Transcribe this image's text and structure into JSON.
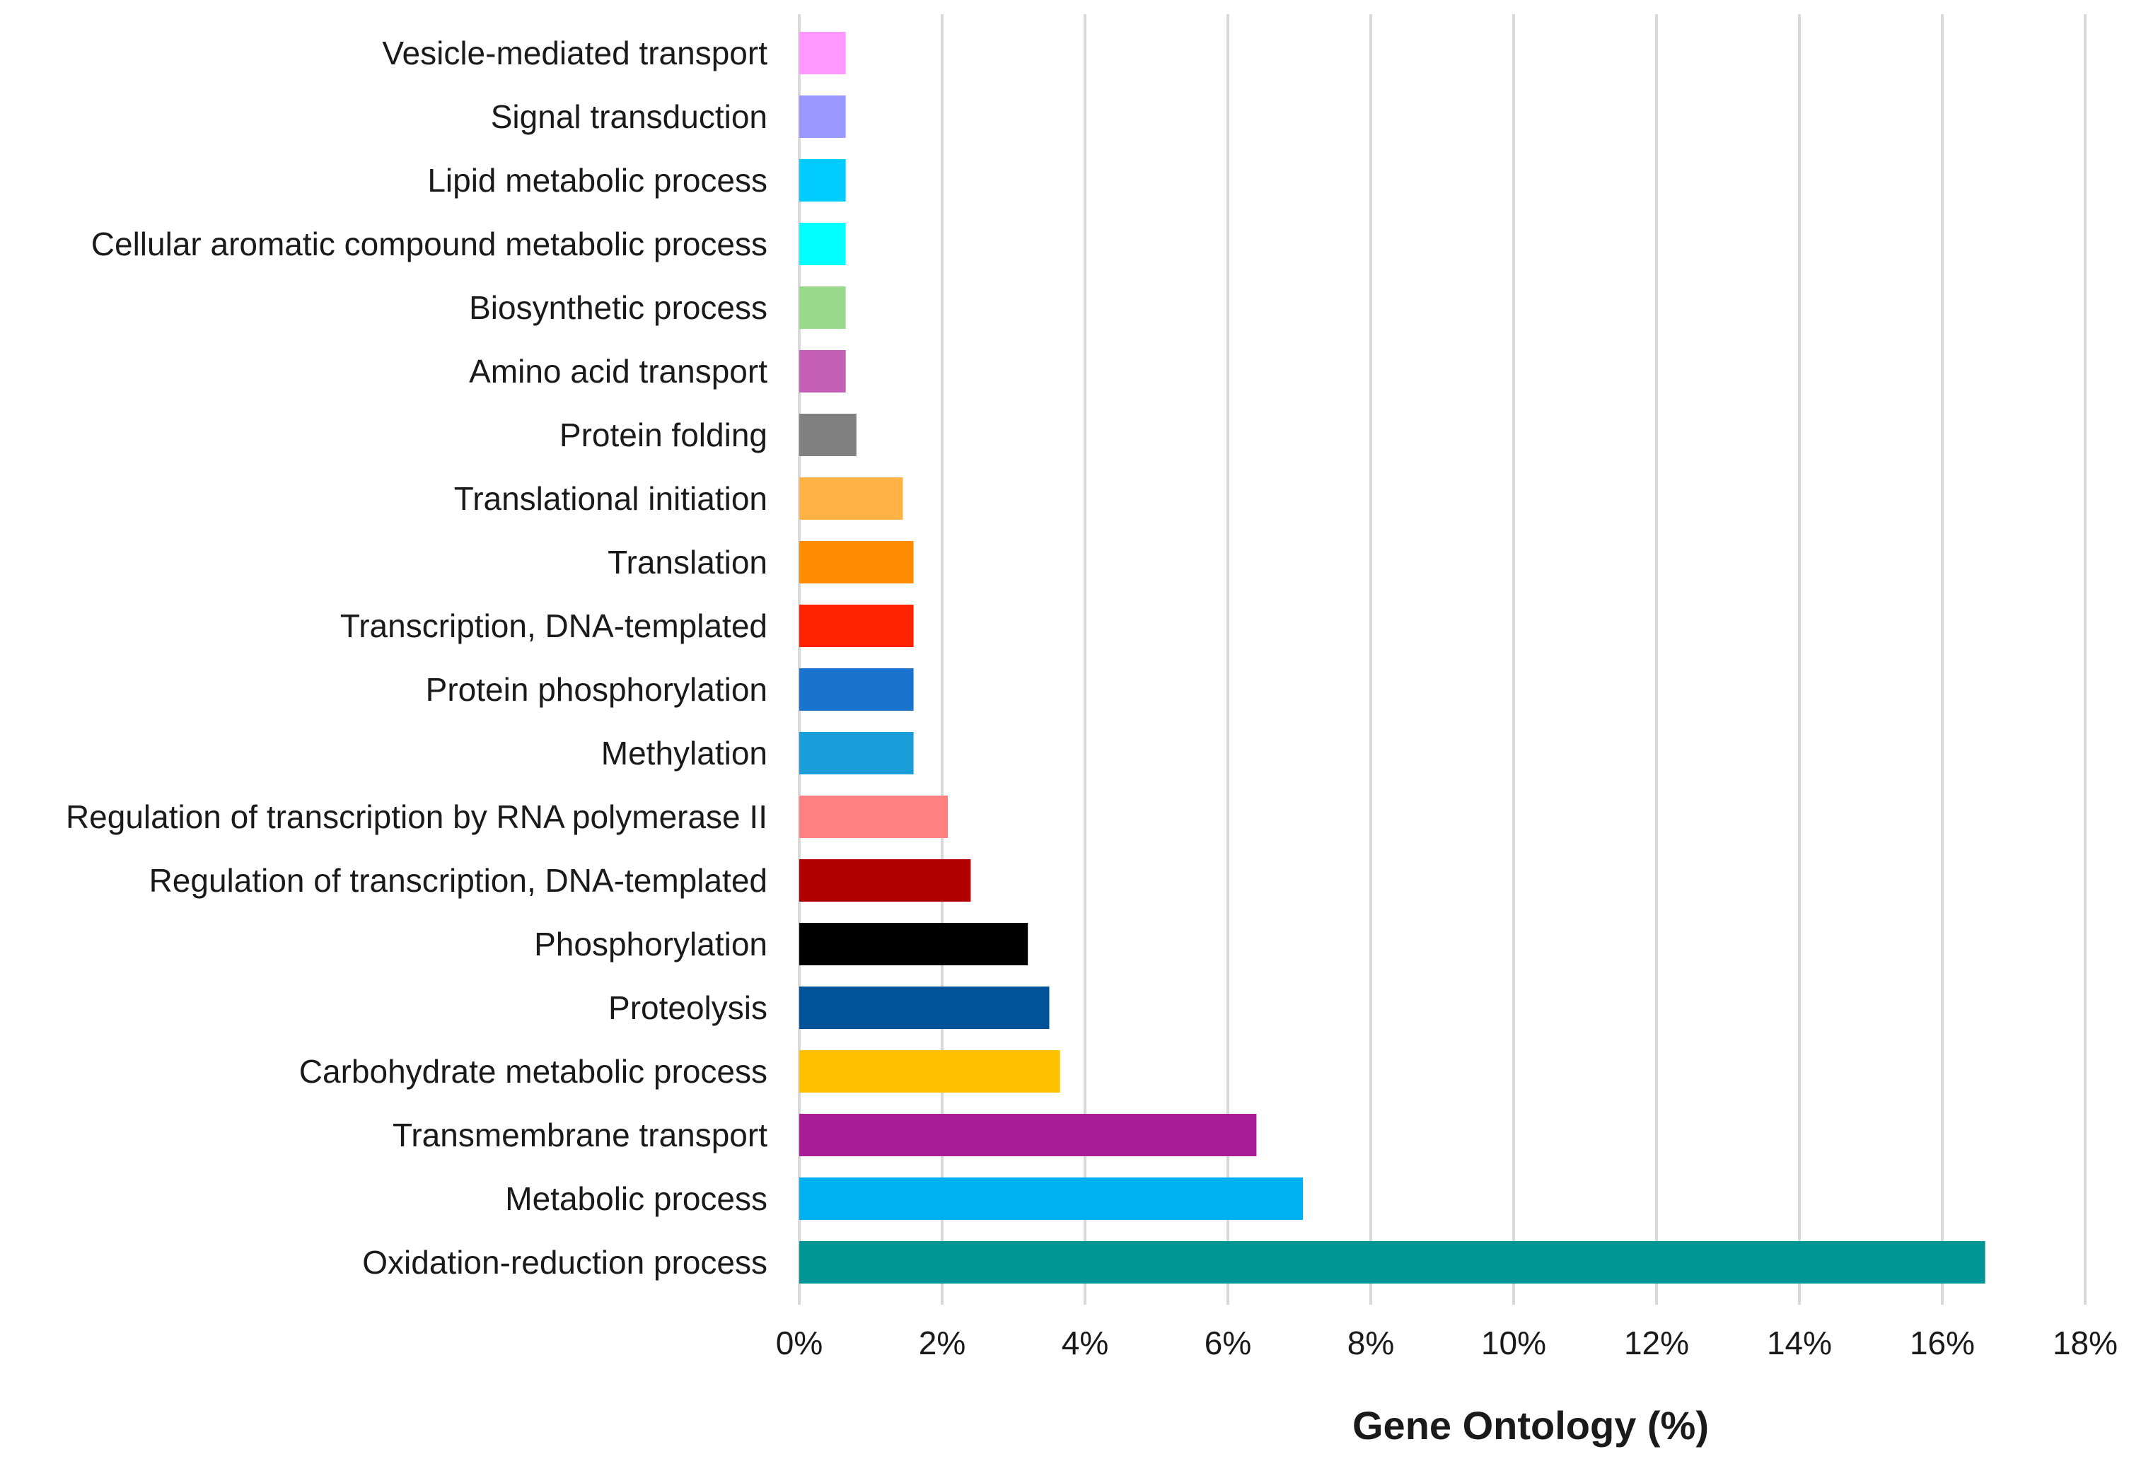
{
  "chart_data": {
    "type": "bar",
    "orientation": "horizontal",
    "title": "",
    "xlabel": "Gene Ontology (%)",
    "ylabel": "",
    "xlim": [
      0,
      18
    ],
    "x_ticks": [
      "0%",
      "2%",
      "4%",
      "6%",
      "8%",
      "10%",
      "12%",
      "14%",
      "16%",
      "18%"
    ],
    "grid": true,
    "legend": "none",
    "categories": [
      "Vesicle-mediated transport",
      "Signal transduction",
      "Lipid metabolic process",
      "Cellular aromatic compound metabolic process",
      "Biosynthetic process",
      "Amino acid transport",
      "Protein folding",
      "Translational initiation",
      "Translation",
      "Transcription, DNA-templated",
      "Protein phosphorylation",
      "Methylation",
      "Regulation of transcription by RNA polymerase II",
      "Regulation of transcription, DNA-templated",
      "Phosphorylation",
      "Proteolysis",
      "Carbohydrate metabolic process",
      "Transmembrane transport",
      "Metabolic process",
      "Oxidation-reduction process"
    ],
    "values": [
      0.65,
      0.65,
      0.65,
      0.65,
      0.65,
      0.65,
      0.8,
      1.45,
      1.6,
      1.6,
      1.6,
      1.6,
      2.08,
      2.4,
      3.2,
      3.5,
      3.65,
      6.4,
      7.05,
      16.6
    ],
    "colors": [
      "#ff99ff",
      "#9999ff",
      "#00ccff",
      "#00ffff",
      "#99d98c",
      "#c45fb5",
      "#808080",
      "#ffb347",
      "#ff8c00",
      "#ff2200",
      "#1a73cc",
      "#1a9ed9",
      "#ff8080",
      "#b00000",
      "#000000",
      "#005299",
      "#ffc000",
      "#a81c96",
      "#00b0f0",
      "#009696"
    ]
  }
}
